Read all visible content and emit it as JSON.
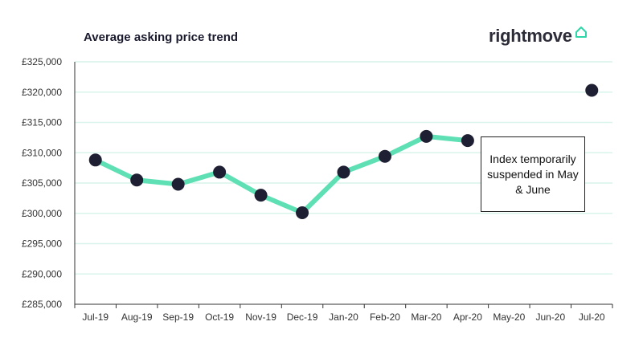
{
  "chart_title": "Average asking price trend",
  "brand": {
    "name": "rightmove",
    "icon": "house-outline-icon",
    "accent": "#2fd6a7",
    "text_color": "#2d2d3a"
  },
  "annotation": "Index temporarily suspended in May & June",
  "chart_data": {
    "type": "line",
    "title": "Average asking price trend",
    "xlabel": "",
    "ylabel": "",
    "categories": [
      "Jul-19",
      "Aug-19",
      "Sep-19",
      "Oct-19",
      "Nov-19",
      "Dec-19",
      "Jan-20",
      "Feb-20",
      "Mar-20",
      "Apr-20",
      "May-20",
      "Jun-20",
      "Jul-20"
    ],
    "series": [
      {
        "values": [
          308800,
          305500,
          304800,
          306800,
          303000,
          300100,
          306800,
          309400,
          312700,
          312000,
          null,
          null,
          320300
        ],
        "line_color": "#5ee0b4",
        "marker_color": "#1e1f33"
      }
    ],
    "ylim": [
      285000,
      325000
    ],
    "yticks": [
      285000,
      290000,
      295000,
      300000,
      305000,
      310000,
      315000,
      320000,
      325000
    ],
    "ytick_labels": [
      "£285,000",
      "£290,000",
      "£295,000",
      "£300,000",
      "£305,000",
      "£310,000",
      "£315,000",
      "£320,000",
      "£325,000"
    ],
    "grid": true,
    "grid_color": "#d9f4ec",
    "gap": [
      "May-20",
      "Jun-20"
    ]
  }
}
